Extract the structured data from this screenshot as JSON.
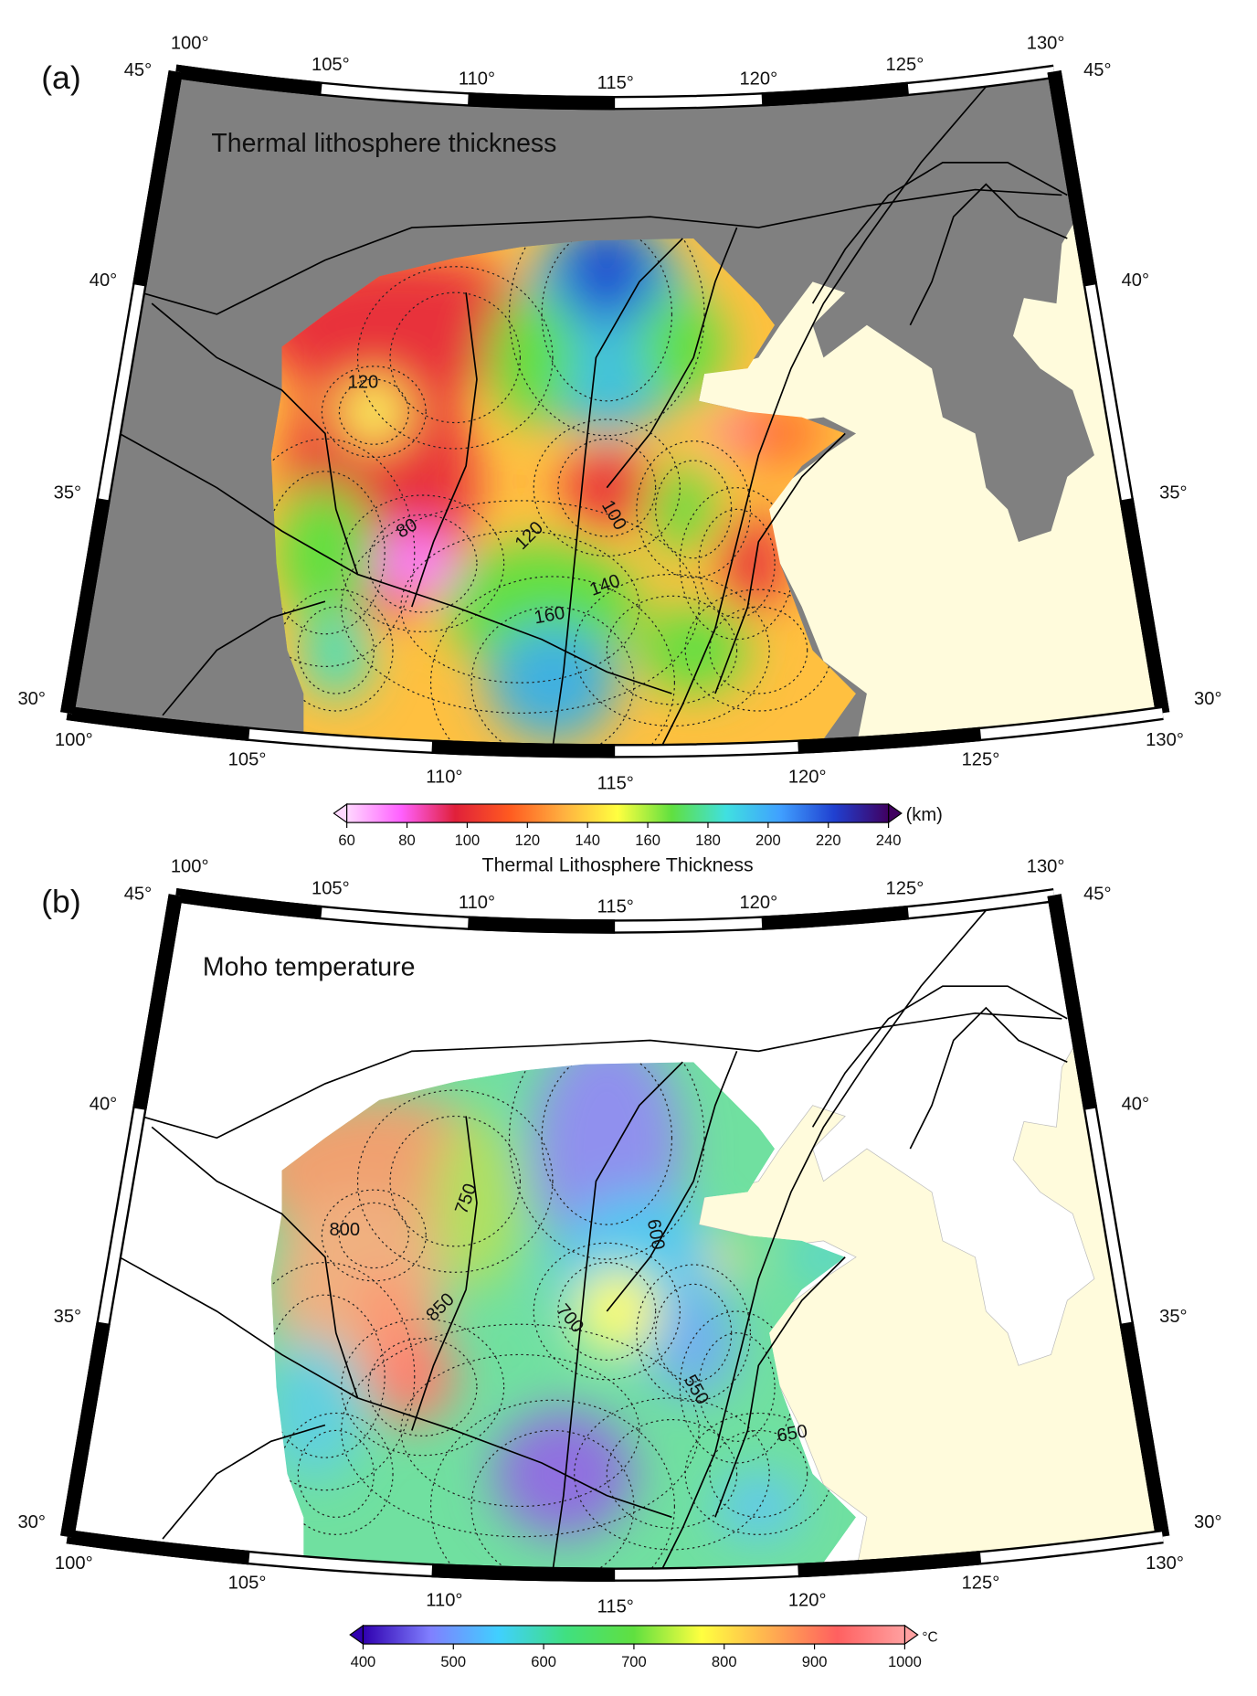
{
  "panels": [
    {
      "label": "(a)",
      "title": "Thermal lithosphere thickness",
      "lon_top": [
        "100°",
        "105°",
        "110°",
        "115°",
        "120°",
        "125°",
        "130°"
      ],
      "lon_bottom": [
        "100°",
        "105°",
        "110°",
        "115°",
        "120°",
        "125°",
        "130°"
      ],
      "lat_left": [
        "45°",
        "40°",
        "35°",
        "30°"
      ],
      "lat_right": [
        "45°",
        "40°",
        "35°",
        "30°"
      ],
      "contour_labels": [
        "120",
        "80",
        "100",
        "120",
        "140",
        "160"
      ],
      "colorbar": {
        "lim": [
          60,
          240
        ],
        "ticks": [
          60,
          80,
          100,
          120,
          140,
          160,
          180,
          200,
          220,
          240
        ],
        "unit": "(km)",
        "label": "Thermal Lithosphere Thickness",
        "colors": [
          "#ffd8ff",
          "#ff60ff",
          "#e0203a",
          "#ff5a20",
          "#ffb040",
          "#ffff40",
          "#60e040",
          "#40e0e0",
          "#40a0ff",
          "#2040d0",
          "#400060"
        ]
      }
    },
    {
      "label": "(b)",
      "title": "Moho temperature",
      "lon_top": [
        "100°",
        "105°",
        "110°",
        "115°",
        "120°",
        "125°",
        "130°"
      ],
      "lon_bottom": [
        "100°",
        "105°",
        "110°",
        "115°",
        "120°",
        "125°",
        "130°"
      ],
      "lat_left": [
        "45°",
        "40°",
        "35°",
        "30°"
      ],
      "lat_right": [
        "45°",
        "40°",
        "35°",
        "30°"
      ],
      "contour_labels": [
        "750",
        "800",
        "850",
        "700",
        "600",
        "550",
        "650"
      ],
      "colorbar": {
        "lim": [
          400,
          1000
        ],
        "ticks": [
          400,
          500,
          600,
          700,
          800,
          900,
          1000
        ],
        "unit": "°C",
        "colors": [
          "#3000b0",
          "#8080ff",
          "#40d0ff",
          "#40e080",
          "#60e040",
          "#ffff40",
          "#ffb050",
          "#ff6060",
          "#ffa0a0"
        ]
      }
    }
  ]
}
